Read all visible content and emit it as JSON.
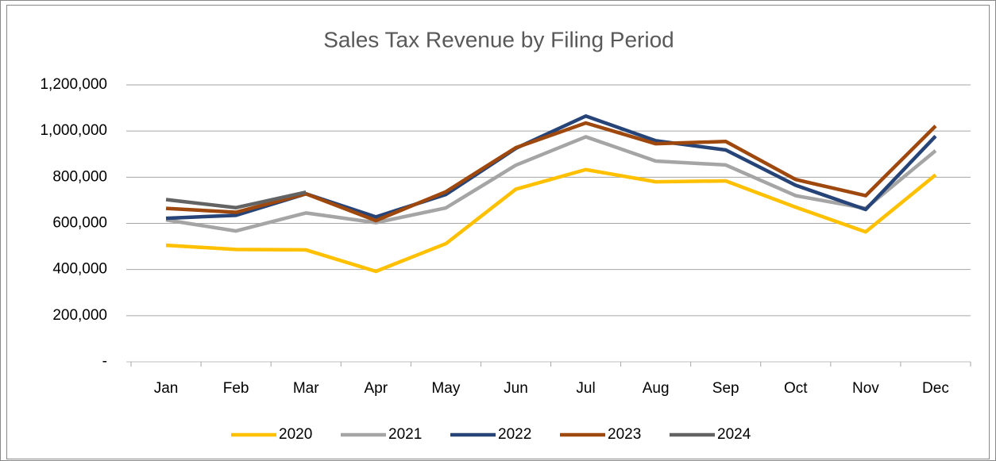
{
  "chart_data": {
    "type": "line",
    "title": "Sales Tax Revenue by Filing Period",
    "categories": [
      "Jan",
      "Feb",
      "Mar",
      "Apr",
      "May",
      "Jun",
      "Jul",
      "Aug",
      "Sep",
      "Oct",
      "Nov",
      "Dec"
    ],
    "series": [
      {
        "name": "2020",
        "color": "#ffc000",
        "values": [
          505000,
          487000,
          485000,
          392000,
          512000,
          748000,
          833000,
          780000,
          784000,
          670000,
          563000,
          810000
        ]
      },
      {
        "name": "2021",
        "color": "#a5a5a5",
        "values": [
          615000,
          567000,
          645000,
          603000,
          667000,
          852000,
          975000,
          870000,
          853000,
          720000,
          665000,
          915000
        ]
      },
      {
        "name": "2022",
        "color": "#264478",
        "values": [
          622000,
          635000,
          728000,
          628000,
          725000,
          925000,
          1065000,
          958000,
          918000,
          765000,
          660000,
          978000
        ]
      },
      {
        "name": "2023",
        "color": "#9e480e",
        "values": [
          665000,
          648000,
          728000,
          612000,
          737000,
          928000,
          1035000,
          945000,
          955000,
          790000,
          720000,
          1022000
        ]
      },
      {
        "name": "2024",
        "color": "#636363",
        "values": [
          703000,
          668000,
          735000,
          null,
          null,
          null,
          null,
          null,
          null,
          null,
          null,
          null
        ]
      }
    ],
    "ylim": [
      0,
      1200000
    ],
    "yticks": [
      {
        "value": 0,
        "label": "-"
      },
      {
        "value": 200000,
        "label": "200,000"
      },
      {
        "value": 400000,
        "label": "400,000"
      },
      {
        "value": 600000,
        "label": "600,000"
      },
      {
        "value": 800000,
        "label": "800,000"
      },
      {
        "value": 1000000,
        "label": "1,000,000"
      },
      {
        "value": 1200000,
        "label": "1,200,000"
      }
    ],
    "grid": true,
    "legend": "bottom"
  }
}
